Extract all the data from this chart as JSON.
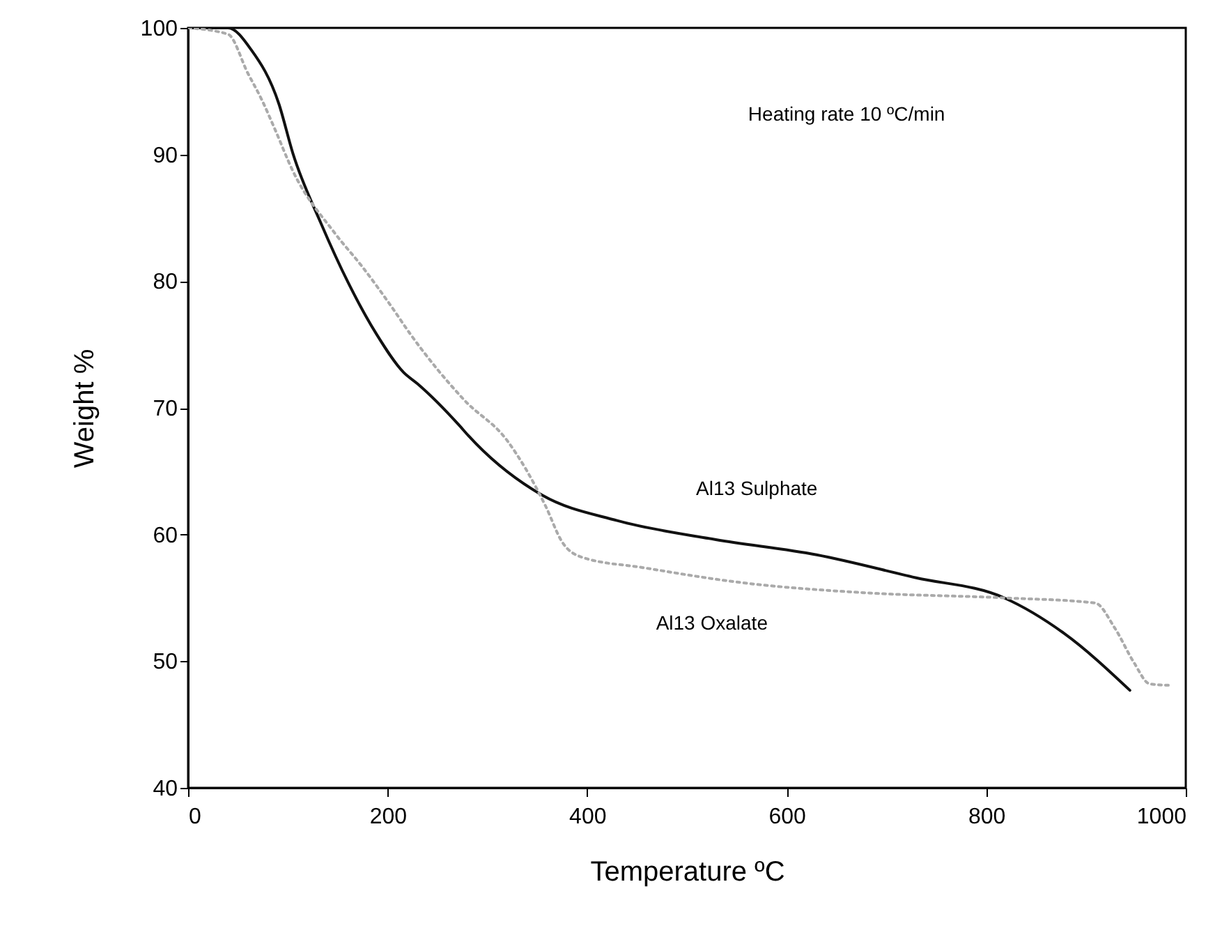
{
  "chart_data": {
    "type": "line",
    "xlabel": "Temperature ºC",
    "ylabel": "Weight  %",
    "xlim": [
      0,
      1000
    ],
    "xticks": [
      0,
      200,
      400,
      600,
      800,
      1000
    ],
    "ylim": [
      40,
      100
    ],
    "yticks": [
      40,
      50,
      60,
      70,
      80,
      90,
      100
    ],
    "grid": false,
    "marker": "none",
    "annotations": [
      "Heating rate 10 ºC/min",
      "Al13 Sulphate",
      "Al13 Oxalate"
    ],
    "series": [
      {
        "color": "#111111",
        "line_style": "solid",
        "x": [
          0,
          40,
          63,
          91,
          105,
          133,
          161,
          189,
          216,
          230,
          272,
          281,
          355,
          430,
          529,
          630,
          729,
          818,
          878,
          944
        ],
        "values": [
          100,
          100,
          98.3,
          94.0,
          90.1,
          84.6,
          79.8,
          75.8,
          72.8,
          71.9,
          68.6,
          67.8,
          63.1,
          61.1,
          59.6,
          58.4,
          56.6,
          55.0,
          52.2,
          47.7
        ]
      },
      {
        "color": "#aaaaaa",
        "line_style": "dotted",
        "x": [
          0,
          40,
          60,
          74,
          87,
          105,
          147,
          175,
          202,
          223,
          277,
          320,
          358,
          375,
          395,
          455,
          555,
          679,
          818,
          909,
          929,
          948,
          964,
          983
        ],
        "values": [
          100,
          99.5,
          96.4,
          94.3,
          92.0,
          88.7,
          83.8,
          81.1,
          78.2,
          75.8,
          70.6,
          67.4,
          62.3,
          59.4,
          58.2,
          57.4,
          56.2,
          55.4,
          55.0,
          54.6,
          52.6,
          49.9,
          48.2,
          48.1
        ]
      }
    ]
  }
}
